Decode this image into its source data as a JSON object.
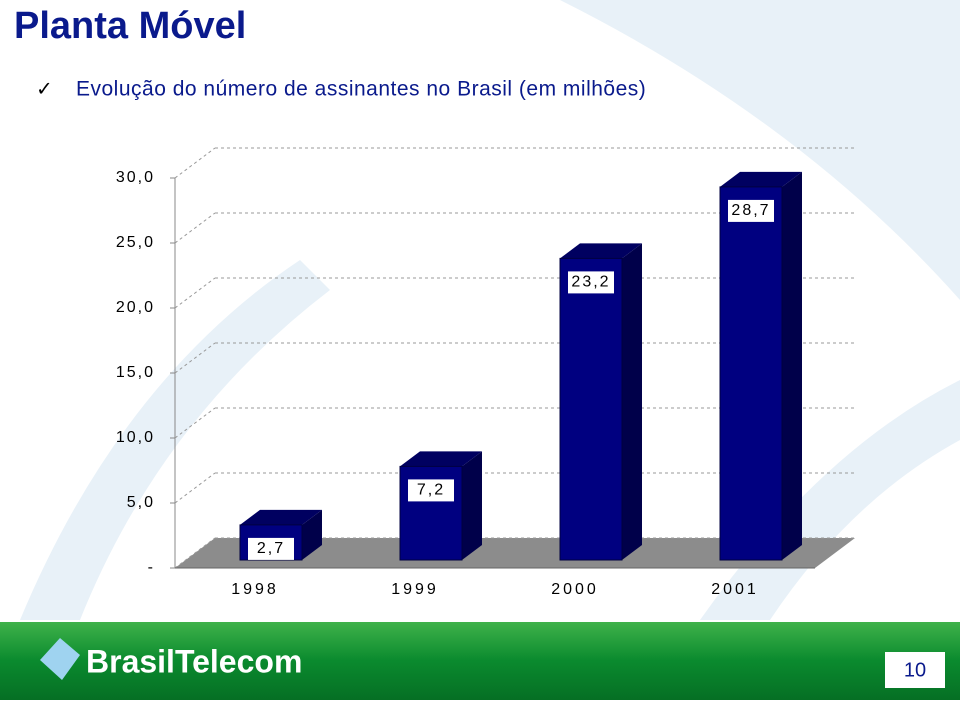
{
  "header": {
    "title": "Planta Móvel",
    "bullet": "Evolução do número de assinantes no Brasil (em milhões)"
  },
  "chart_data": {
    "type": "bar3d",
    "categories": [
      "1998",
      "1999",
      "2000",
      "2001"
    ],
    "values": [
      2.7,
      7.2,
      23.2,
      28.7
    ],
    "value_labels": [
      "2,7",
      "7,2",
      "23,2",
      "28,7"
    ],
    "color": "#000080",
    "ylim": [
      0,
      30
    ],
    "yticks": [
      {
        "value": 0,
        "label": "-"
      },
      {
        "value": 5,
        "label": "5,0"
      },
      {
        "value": 10,
        "label": "10,0"
      },
      {
        "value": 15,
        "label": "15,0"
      },
      {
        "value": 20,
        "label": "20,0"
      },
      {
        "value": 25,
        "label": "25,0"
      },
      {
        "value": 30,
        "label": "30,0"
      }
    ],
    "grid": true
  },
  "footer": {
    "logo": "BrasilTelecom",
    "page": "10"
  }
}
